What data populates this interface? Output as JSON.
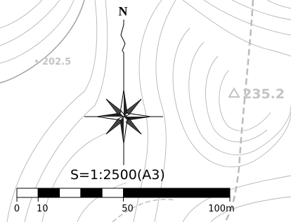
{
  "north_label": "N",
  "spot_heights": [
    "202.5",
    "235.2"
  ],
  "scale_text": "S=1:2500(A3)",
  "scale_bar": {
    "ticks": [
      0,
      10,
      50,
      {
        "value": 100,
        "label": "100m"
      }
    ],
    "max": 100
  }
}
